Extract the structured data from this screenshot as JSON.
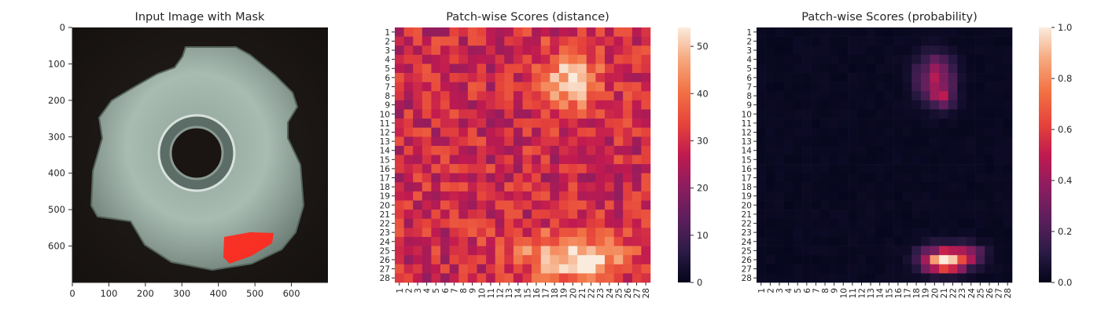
{
  "chart_data": [
    {
      "type": "image",
      "title": "Input Image with Mask",
      "xticks": [
        0,
        100,
        200,
        300,
        400,
        500,
        600
      ],
      "yticks": [
        0,
        100,
        200,
        300,
        400,
        500,
        600
      ],
      "xlim": [
        0,
        700
      ],
      "ylim": [
        700,
        0
      ],
      "mask_color": "#ff2a1f"
    },
    {
      "type": "heatmap",
      "title": "Patch-wise Scores (distance)",
      "rows": 28,
      "cols": 28,
      "row_labels": [
        "1",
        "2",
        "3",
        "4",
        "5",
        "6",
        "7",
        "8",
        "9",
        "10",
        "11",
        "12",
        "13",
        "14",
        "15",
        "16",
        "17",
        "18",
        "19",
        "20",
        "21",
        "22",
        "23",
        "24",
        "25",
        "26",
        "27",
        "28"
      ],
      "col_labels": [
        "1",
        "2",
        "3",
        "4",
        "5",
        "6",
        "7",
        "8",
        "9",
        "10",
        "11",
        "12",
        "13",
        "14",
        "15",
        "16",
        "17",
        "18",
        "19",
        "20",
        "21",
        "22",
        "23",
        "24",
        "25",
        "26",
        "27",
        "28"
      ],
      "colorbar_ticks": [
        0,
        10,
        20,
        30,
        40,
        50
      ],
      "vmin": 0,
      "vmax": 54,
      "colormap": "rocket",
      "hot_regions": [
        {
          "row": 6.5,
          "col": 19.5,
          "sx": 2.6,
          "sy": 2.3,
          "amp": 22
        },
        {
          "row": 26.2,
          "col": 20.5,
          "sx": 3.8,
          "sy": 1.4,
          "amp": 24
        },
        {
          "row": 24.2,
          "col": 19.0,
          "sx": 5.5,
          "sy": 1.2,
          "amp": 8
        }
      ],
      "base_value": 29
    },
    {
      "type": "heatmap",
      "title": "Patch-wise Scores (probability)",
      "rows": 28,
      "cols": 28,
      "row_labels": [
        "1",
        "2",
        "3",
        "4",
        "5",
        "6",
        "7",
        "8",
        "9",
        "10",
        "11",
        "12",
        "13",
        "14",
        "15",
        "16",
        "17",
        "18",
        "19",
        "20",
        "21",
        "22",
        "23",
        "24",
        "25",
        "26",
        "27",
        "28"
      ],
      "col_labels": [
        "1",
        "2",
        "3",
        "4",
        "5",
        "6",
        "7",
        "8",
        "9",
        "10",
        "11",
        "12",
        "13",
        "14",
        "15",
        "16",
        "17",
        "18",
        "19",
        "20",
        "21",
        "22",
        "23",
        "24",
        "25",
        "26",
        "27",
        "28"
      ],
      "colorbar_ticks": [
        "0.0",
        "0.2",
        "0.4",
        "0.6",
        "0.8",
        "1.0"
      ],
      "vmin": 0,
      "vmax": 1,
      "colormap": "rocket",
      "hot_regions": [
        {
          "row": 6.0,
          "col": 20.0,
          "sx": 1.3,
          "sy": 1.6,
          "amp": 0.45
        },
        {
          "row": 8.0,
          "col": 21.0,
          "sx": 0.9,
          "sy": 1.0,
          "amp": 0.25
        },
        {
          "row": 26.0,
          "col": 21.0,
          "sx": 1.7,
          "sy": 0.9,
          "amp": 0.85
        },
        {
          "row": 25.5,
          "col": 23.5,
          "sx": 1.3,
          "sy": 0.8,
          "amp": 0.3
        }
      ],
      "base_value": 0.01
    }
  ]
}
